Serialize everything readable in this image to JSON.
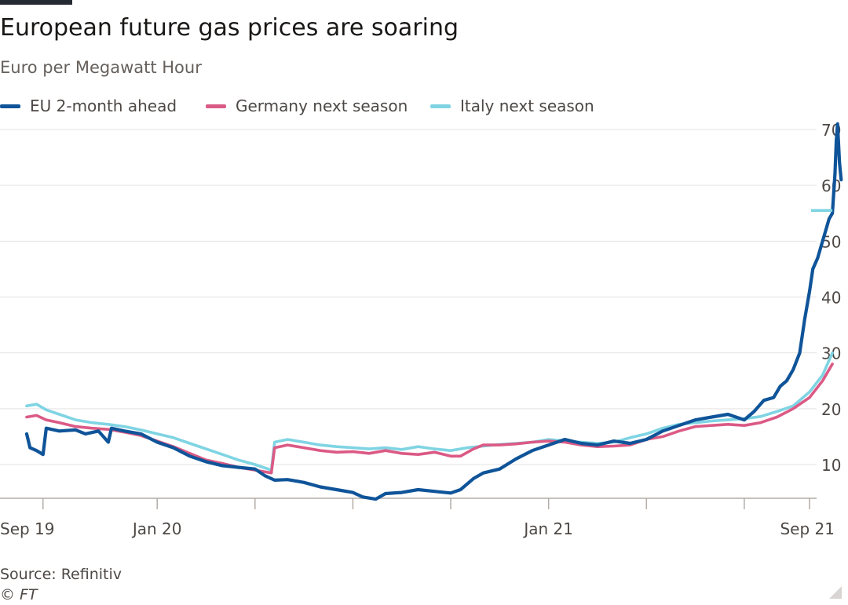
{
  "header": {
    "title": "European future gas prices are soaring",
    "subtitle": "Euro per Megawatt Hour"
  },
  "footer": {
    "source": "Source: Refinitiv",
    "credit": "© FT"
  },
  "chart_data": {
    "type": "line",
    "title": "European future gas prices are soaring",
    "ylabel": "Euro per Megawatt Hour",
    "xlabel": "",
    "ylim": [
      3,
      72
    ],
    "x_range": [
      "2019-09",
      "2021-09"
    ],
    "x_tick_labels": [
      "Sep 19",
      "Jan 20",
      "Jan 21",
      "Sep 21"
    ],
    "x_tick_months": [
      0,
      4,
      16,
      24
    ],
    "x_minor_ticks": [
      0.5,
      4,
      7,
      10,
      13,
      16,
      19,
      22,
      24
    ],
    "y_ticks": [
      10,
      20,
      30,
      40,
      50,
      60,
      70
    ],
    "grid": true,
    "y_axis_side": "right",
    "legend_position": "top",
    "series": [
      {
        "name": "EU 2-month ahead",
        "color": "#0f5499",
        "points": [
          [
            0,
            15.5
          ],
          [
            0.1,
            13
          ],
          [
            0.3,
            12.5
          ],
          [
            0.5,
            11.8
          ],
          [
            0.6,
            16.5
          ],
          [
            1,
            16
          ],
          [
            1.5,
            16.2
          ],
          [
            1.8,
            15.5
          ],
          [
            2.2,
            16
          ],
          [
            2.5,
            14
          ],
          [
            2.6,
            16.5
          ],
          [
            3,
            16
          ],
          [
            3.5,
            15.5
          ],
          [
            4,
            14
          ],
          [
            4.5,
            13
          ],
          [
            5,
            11.5
          ],
          [
            5.5,
            10.5
          ],
          [
            6,
            9.8
          ],
          [
            6.5,
            9.5
          ],
          [
            7,
            9.2
          ],
          [
            7.3,
            8
          ],
          [
            7.6,
            7.2
          ],
          [
            8,
            7.3
          ],
          [
            8.5,
            6.8
          ],
          [
            9,
            6
          ],
          [
            9.5,
            5.5
          ],
          [
            10,
            5
          ],
          [
            10.3,
            4.2
          ],
          [
            10.7,
            3.8
          ],
          [
            11,
            4.8
          ],
          [
            11.5,
            5
          ],
          [
            12,
            5.5
          ],
          [
            12.5,
            5.2
          ],
          [
            13,
            4.9
          ],
          [
            13.3,
            5.5
          ],
          [
            13.7,
            7.5
          ],
          [
            14,
            8.5
          ],
          [
            14.5,
            9.2
          ],
          [
            15,
            11
          ],
          [
            15.5,
            12.5
          ],
          [
            16,
            13.5
          ],
          [
            16.5,
            14.5
          ],
          [
            17,
            13.8
          ],
          [
            17.5,
            13.5
          ],
          [
            18,
            14.2
          ],
          [
            18.5,
            13.8
          ],
          [
            19,
            14.5
          ],
          [
            19.5,
            16
          ],
          [
            20,
            17
          ],
          [
            20.5,
            18
          ],
          [
            21,
            18.5
          ],
          [
            21.5,
            19
          ],
          [
            22,
            18
          ],
          [
            22.3,
            19.5
          ],
          [
            22.6,
            21.5
          ],
          [
            22.9,
            22
          ],
          [
            23.1,
            24
          ],
          [
            23.3,
            25
          ],
          [
            23.5,
            27
          ],
          [
            23.7,
            30
          ],
          [
            23.85,
            36
          ],
          [
            24,
            41
          ],
          [
            24.1,
            45
          ],
          [
            24.25,
            47
          ],
          [
            24.4,
            50
          ],
          [
            24.5,
            52
          ],
          [
            24.6,
            54
          ],
          [
            24.7,
            55
          ],
          [
            24.78,
            62
          ],
          [
            24.82,
            68
          ],
          [
            24.86,
            71
          ],
          [
            24.92,
            64
          ],
          [
            24.97,
            61
          ]
        ]
      },
      {
        "name": "Germany next season",
        "color": "#db5a85",
        "points": [
          [
            0,
            18.5
          ],
          [
            0.3,
            18.8
          ],
          [
            0.6,
            18
          ],
          [
            1,
            17.5
          ],
          [
            1.5,
            16.8
          ],
          [
            2,
            16.5
          ],
          [
            2.5,
            16.3
          ],
          [
            3,
            15.8
          ],
          [
            3.5,
            15.2
          ],
          [
            4,
            14.2
          ],
          [
            4.5,
            13.2
          ],
          [
            5,
            12
          ],
          [
            5.5,
            10.8
          ],
          [
            6,
            10.2
          ],
          [
            6.5,
            9.5
          ],
          [
            7,
            9
          ],
          [
            7.5,
            8.5
          ],
          [
            7.6,
            13
          ],
          [
            8,
            13.5
          ],
          [
            8.5,
            13
          ],
          [
            9,
            12.5
          ],
          [
            9.5,
            12.2
          ],
          [
            10,
            12.3
          ],
          [
            10.5,
            12
          ],
          [
            11,
            12.5
          ],
          [
            11.5,
            12
          ],
          [
            12,
            11.8
          ],
          [
            12.5,
            12.2
          ],
          [
            13,
            11.5
          ],
          [
            13.3,
            11.5
          ],
          [
            13.7,
            12.8
          ],
          [
            14,
            13.5
          ],
          [
            14.5,
            13.5
          ],
          [
            15,
            13.7
          ],
          [
            15.5,
            14
          ],
          [
            16,
            14.2
          ],
          [
            16.5,
            14
          ],
          [
            17,
            13.5
          ],
          [
            17.5,
            13.2
          ],
          [
            18,
            13.3
          ],
          [
            18.5,
            13.5
          ],
          [
            19,
            14.5
          ],
          [
            19.5,
            15
          ],
          [
            20,
            16
          ],
          [
            20.5,
            16.8
          ],
          [
            21,
            17
          ],
          [
            21.5,
            17.2
          ],
          [
            22,
            17
          ],
          [
            22.5,
            17.5
          ],
          [
            23,
            18.5
          ],
          [
            23.5,
            20
          ],
          [
            24,
            22
          ],
          [
            24.4,
            25
          ],
          [
            24.7,
            28
          ]
        ]
      },
      {
        "name": "Italy next season",
        "color": "#7fd4e3",
        "points": [
          [
            0,
            20.5
          ],
          [
            0.3,
            20.8
          ],
          [
            0.6,
            19.8
          ],
          [
            1,
            19
          ],
          [
            1.5,
            18
          ],
          [
            2,
            17.5
          ],
          [
            2.5,
            17.2
          ],
          [
            3,
            16.8
          ],
          [
            3.5,
            16.2
          ],
          [
            4,
            15.5
          ],
          [
            4.5,
            14.8
          ],
          [
            5,
            13.8
          ],
          [
            5.5,
            12.8
          ],
          [
            6,
            11.8
          ],
          [
            6.5,
            10.8
          ],
          [
            7,
            10
          ],
          [
            7.5,
            9
          ],
          [
            7.6,
            14
          ],
          [
            8,
            14.5
          ],
          [
            8.5,
            14
          ],
          [
            9,
            13.5
          ],
          [
            9.5,
            13.2
          ],
          [
            10,
            13
          ],
          [
            10.5,
            12.8
          ],
          [
            11,
            13
          ],
          [
            11.5,
            12.7
          ],
          [
            12,
            13.2
          ],
          [
            12.5,
            12.8
          ],
          [
            13,
            12.5
          ],
          [
            13.5,
            13
          ],
          [
            14,
            13.3
          ],
          [
            14.5,
            13.6
          ],
          [
            15,
            13.8
          ],
          [
            15.5,
            14
          ],
          [
            16,
            14.5
          ],
          [
            16.5,
            14.2
          ],
          [
            17,
            14
          ],
          [
            17.5,
            13.8
          ],
          [
            18,
            14
          ],
          [
            18.5,
            14.8
          ],
          [
            19,
            15.5
          ],
          [
            19.5,
            16.5
          ],
          [
            20,
            17.2
          ],
          [
            20.5,
            17.5
          ],
          [
            21,
            17.8
          ],
          [
            21.5,
            18
          ],
          [
            22,
            18.2
          ],
          [
            22.5,
            18.6
          ],
          [
            23,
            19.5
          ],
          [
            23.5,
            20.5
          ],
          [
            24,
            23
          ],
          [
            24.4,
            26
          ],
          [
            24.7,
            30
          ]
        ]
      }
    ]
  }
}
